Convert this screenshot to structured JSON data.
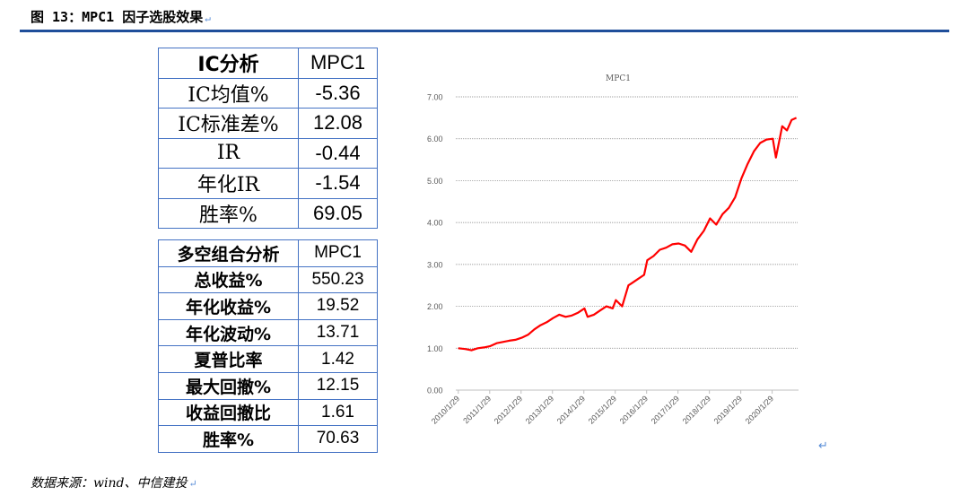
{
  "figure": {
    "title": "图 13：MPC1 因子选股效果",
    "source": "数据来源：wind、中信建投",
    "return_mark": "↵"
  },
  "ic_table": {
    "header": [
      "IC分析",
      "MPC1"
    ],
    "rows": [
      [
        "IC均值%",
        "-5.36"
      ],
      [
        "IC标准差%",
        "12.08"
      ],
      [
        "IR",
        "-0.44"
      ],
      [
        "年化IR",
        "-1.54"
      ],
      [
        "胜率%",
        "69.05"
      ]
    ]
  },
  "longshort_table": {
    "header": [
      "多空组合分析",
      "MPC1"
    ],
    "rows": [
      [
        "总收益%",
        "550.23"
      ],
      [
        "年化收益%",
        "19.52"
      ],
      [
        "年化波动%",
        "13.71"
      ],
      [
        "夏普比率",
        "1.42"
      ],
      [
        "最大回撤%",
        "12.15"
      ],
      [
        "收益回撤比",
        "1.61"
      ],
      [
        "胜率%",
        "70.63"
      ]
    ]
  },
  "chart_data": {
    "type": "line",
    "title": "MPC1",
    "xlabel": "",
    "ylabel": "",
    "ylim": [
      0,
      7
    ],
    "yticks": [
      "0.00",
      "1.00",
      "2.00",
      "3.00",
      "4.00",
      "5.00",
      "6.00",
      "7.00"
    ],
    "xticks": [
      "2010/1/29",
      "2011/1/29",
      "2012/1/29",
      "2013/1/29",
      "2014/1/29",
      "2015/1/29",
      "2016/1/29",
      "2017/1/29",
      "2018/1/29",
      "2019/1/29",
      "2020/1/29"
    ],
    "grid": true,
    "line_color": "#ff0000",
    "series": [
      {
        "x": [
          2010.08,
          2010.3,
          2010.5,
          2010.7,
          2010.9,
          2011.1,
          2011.3,
          2011.5,
          2011.7,
          2011.9,
          2012.1,
          2012.3,
          2012.5,
          2012.7,
          2012.9,
          2013.1,
          2013.3,
          2013.5,
          2013.7,
          2013.9,
          2014.1,
          2014.2,
          2014.4,
          2014.6,
          2014.8,
          2015.0,
          2015.1,
          2015.3,
          2015.5,
          2015.6,
          2015.8,
          2016.0,
          2016.1,
          2016.3,
          2016.5,
          2016.7,
          2016.9,
          2017.1,
          2017.3,
          2017.5,
          2017.7,
          2017.9,
          2018.1,
          2018.3,
          2018.5,
          2018.7,
          2018.9,
          2019.1,
          2019.3,
          2019.5,
          2019.7,
          2019.9,
          2020.1,
          2020.2,
          2020.4,
          2020.55,
          2020.7,
          2020.85
        ],
        "values": [
          1.0,
          0.98,
          0.95,
          1.0,
          1.02,
          1.05,
          1.12,
          1.15,
          1.18,
          1.2,
          1.25,
          1.32,
          1.45,
          1.55,
          1.62,
          1.72,
          1.8,
          1.75,
          1.78,
          1.85,
          1.95,
          1.75,
          1.8,
          1.9,
          2.0,
          1.95,
          2.15,
          2.0,
          2.5,
          2.55,
          2.65,
          2.75,
          3.1,
          3.2,
          3.35,
          3.4,
          3.48,
          3.5,
          3.45,
          3.3,
          3.6,
          3.8,
          4.1,
          3.95,
          4.2,
          4.35,
          4.6,
          5.05,
          5.4,
          5.7,
          5.9,
          5.98,
          6.0,
          5.55,
          6.3,
          6.2,
          6.45,
          6.5
        ]
      }
    ]
  }
}
